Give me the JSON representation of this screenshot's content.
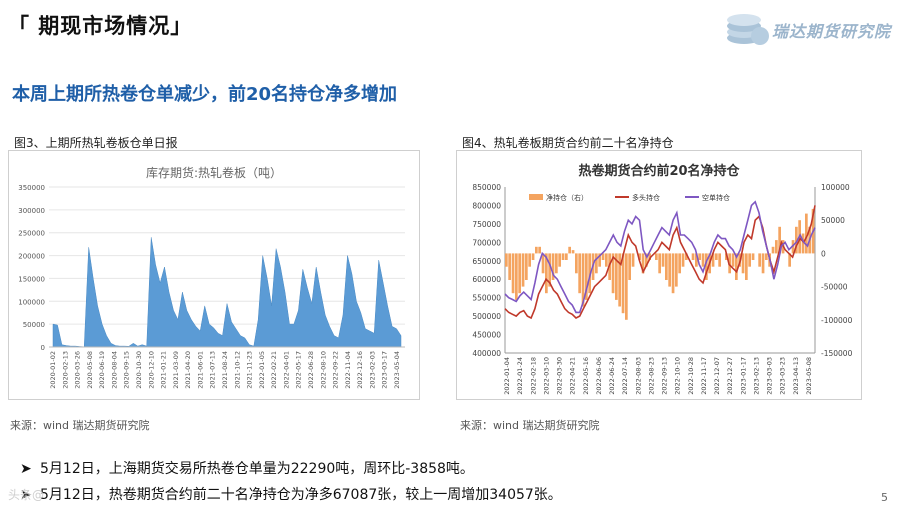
{
  "header": {
    "title": "「 期现市场情况」"
  },
  "logo": {
    "text": "瑞达期货研究院"
  },
  "subtitle": "本周上期所热卷仓单减少，前20名持仓净多增加",
  "figures": [
    {
      "caption": "图3、上期所热轧卷板仓单日报",
      "source": "来源：wind   瑞达期货研究院"
    },
    {
      "caption": "图4、热轧卷板期货合约前二十名净持仓",
      "source": "来源：wind   瑞达期货研究院"
    }
  ],
  "bullets": [
    "5月12日，上海期货交易所热卷仓单量为22290吨，周环比-3858吨。",
    "5月12日，热卷期货合约前二十名净持仓为净多67087张，较上一周增加34057张。"
  ],
  "page_number": "5",
  "watermark": "头条@",
  "chart_data": [
    {
      "type": "area",
      "title": "库存期货:热轧卷板（吨）",
      "ylim": [
        0,
        350000
      ],
      "y_ticks": [
        0,
        50000,
        100000,
        150000,
        200000,
        250000,
        300000,
        350000
      ],
      "x_labels": [
        "2020-01-02",
        "2020-02-13",
        "2020-03-26",
        "2020-05-08",
        "2020-06-19",
        "2020-08-04",
        "2020-09-15",
        "2020-10-30",
        "2020-12-10",
        "2021-01-21",
        "2021-03-09",
        "2021-04-20",
        "2021-06-01",
        "2021-07-13",
        "2021-08-24",
        "2021-10-12",
        "2021-11-23",
        "2022-01-05",
        "2022-02-21",
        "2022-04-01",
        "2022-05-17",
        "2022-06-28",
        "2022-08-10",
        "2022-09-22",
        "2022-11-04",
        "2022-12-16",
        "2023-02-03",
        "2023-03-17",
        "2023-05-04"
      ],
      "series": [
        {
          "values": [
            50000,
            48000,
            5000,
            3000,
            2000,
            2000,
            1000,
            500,
            218000,
            150000,
            90000,
            50000,
            25000,
            8000,
            3000,
            2000,
            2000,
            1500,
            8000,
            2000,
            5000,
            2000,
            240000,
            180000,
            140000,
            175000,
            120000,
            80000,
            60000,
            120000,
            80000,
            60000,
            45000,
            35000,
            90000,
            50000,
            42000,
            30000,
            25000,
            95000,
            55000,
            40000,
            25000,
            20000,
            5000,
            2000,
            60000,
            200000,
            150000,
            90000,
            215000,
            175000,
            120000,
            50000,
            50000,
            80000,
            170000,
            130000,
            95000,
            175000,
            120000,
            70000,
            45000,
            25000,
            20000,
            70000,
            200000,
            160000,
            100000,
            75000,
            40000,
            35000,
            30000,
            190000,
            140000,
            90000,
            45000,
            40000,
            25000
          ]
        }
      ]
    },
    {
      "type": "line",
      "title": "热卷期货合约前20名净持仓",
      "ylim": [
        400000,
        850000
      ],
      "y_ticks": [
        400000,
        450000,
        500000,
        550000,
        600000,
        650000,
        700000,
        750000,
        800000,
        850000
      ],
      "y2lim": [
        -150000,
        100000
      ],
      "y2_ticks": [
        -150000,
        -100000,
        -50000,
        0,
        50000,
        100000
      ],
      "legend": [
        "净持仓（右）",
        "多头持仓",
        "空单持仓"
      ],
      "legend_position": "top",
      "x_labels": [
        "2022-01-04",
        "2022-01-24",
        "2022-02-18",
        "2022-03-10",
        "2022-03-30",
        "2022-04-21",
        "2022-05-16",
        "2022-06-06",
        "2022-06-24",
        "2022-07-14",
        "2022-08-03",
        "2022-08-23",
        "2022-09-13",
        "2022-10-10",
        "2022-10-28",
        "2022-11-17",
        "2022-12-07",
        "2022-12-27",
        "2023-01-17",
        "2023-02-13",
        "2023-03-03",
        "2023-03-23",
        "2023-04-13",
        "2023-05-08"
      ],
      "series": [
        {
          "name": "净持仓（右）",
          "values": [
            -20000,
            -40000,
            -60000,
            -70000,
            -60000,
            -50000,
            -40000,
            -20000,
            -10000,
            10000,
            10000,
            -30000,
            -60000,
            -50000,
            -40000,
            -30000,
            -20000,
            -10000,
            -10000,
            10000,
            5000,
            -30000,
            -60000,
            -80000,
            -70000,
            -60000,
            -40000,
            -30000,
            -20000,
            -10000,
            -20000,
            -40000,
            -60000,
            -70000,
            -80000,
            -90000,
            -100000,
            -40000,
            -20000,
            0,
            -10000,
            -30000,
            -20000,
            -10000,
            0,
            -10000,
            -30000,
            -20000,
            -40000,
            -50000,
            -60000,
            -50000,
            -30000,
            -20000,
            -10000,
            0,
            -10000,
            -20000,
            -10000,
            -20000,
            -40000,
            -30000,
            -20000,
            -10000,
            -20000,
            0,
            -10000,
            -30000,
            -20000,
            -40000,
            -20000,
            -30000,
            -40000,
            -20000,
            -10000,
            0,
            -20000,
            -30000,
            -10000,
            -20000,
            10000,
            20000,
            40000,
            20000,
            0,
            -20000,
            20000,
            40000,
            50000,
            30000,
            60000,
            40000,
            67087
          ]
        },
        {
          "name": "多头持仓",
          "values": [
            520000,
            510000,
            505000,
            500000,
            510000,
            515000,
            500000,
            495000,
            520000,
            560000,
            580000,
            600000,
            590000,
            570000,
            560000,
            540000,
            520000,
            510000,
            505000,
            495000,
            500000,
            520000,
            540000,
            560000,
            580000,
            590000,
            600000,
            610000,
            640000,
            660000,
            650000,
            640000,
            680000,
            720000,
            700000,
            690000,
            650000,
            620000,
            640000,
            660000,
            670000,
            680000,
            700000,
            690000,
            680000,
            720000,
            740000,
            700000,
            680000,
            660000,
            640000,
            620000,
            600000,
            590000,
            620000,
            650000,
            680000,
            700000,
            690000,
            680000,
            640000,
            630000,
            620000,
            650000,
            700000,
            720000,
            710000,
            760000,
            770000,
            740000,
            690000,
            650000,
            620000,
            660000,
            700000,
            680000,
            670000,
            660000,
            690000,
            710000,
            700000,
            720000,
            750000,
            800000
          ]
        },
        {
          "name": "空单持仓",
          "values": [
            560000,
            550000,
            545000,
            540000,
            555000,
            565000,
            555000,
            545000,
            590000,
            640000,
            670000,
            660000,
            640000,
            610000,
            600000,
            580000,
            560000,
            540000,
            530000,
            510000,
            510000,
            540000,
            580000,
            620000,
            650000,
            660000,
            670000,
            680000,
            700000,
            720000,
            700000,
            690000,
            730000,
            760000,
            750000,
            770000,
            760000,
            680000,
            660000,
            680000,
            700000,
            720000,
            740000,
            730000,
            720000,
            760000,
            780000,
            720000,
            720000,
            710000,
            700000,
            680000,
            640000,
            620000,
            650000,
            670000,
            700000,
            720000,
            710000,
            710000,
            690000,
            680000,
            660000,
            680000,
            720000,
            760000,
            800000,
            810000,
            780000,
            730000,
            690000,
            650000,
            600000,
            640000,
            690000,
            700000,
            680000,
            690000,
            700000,
            720000,
            700000,
            690000,
            720000,
            740000
          ]
        }
      ]
    }
  ]
}
